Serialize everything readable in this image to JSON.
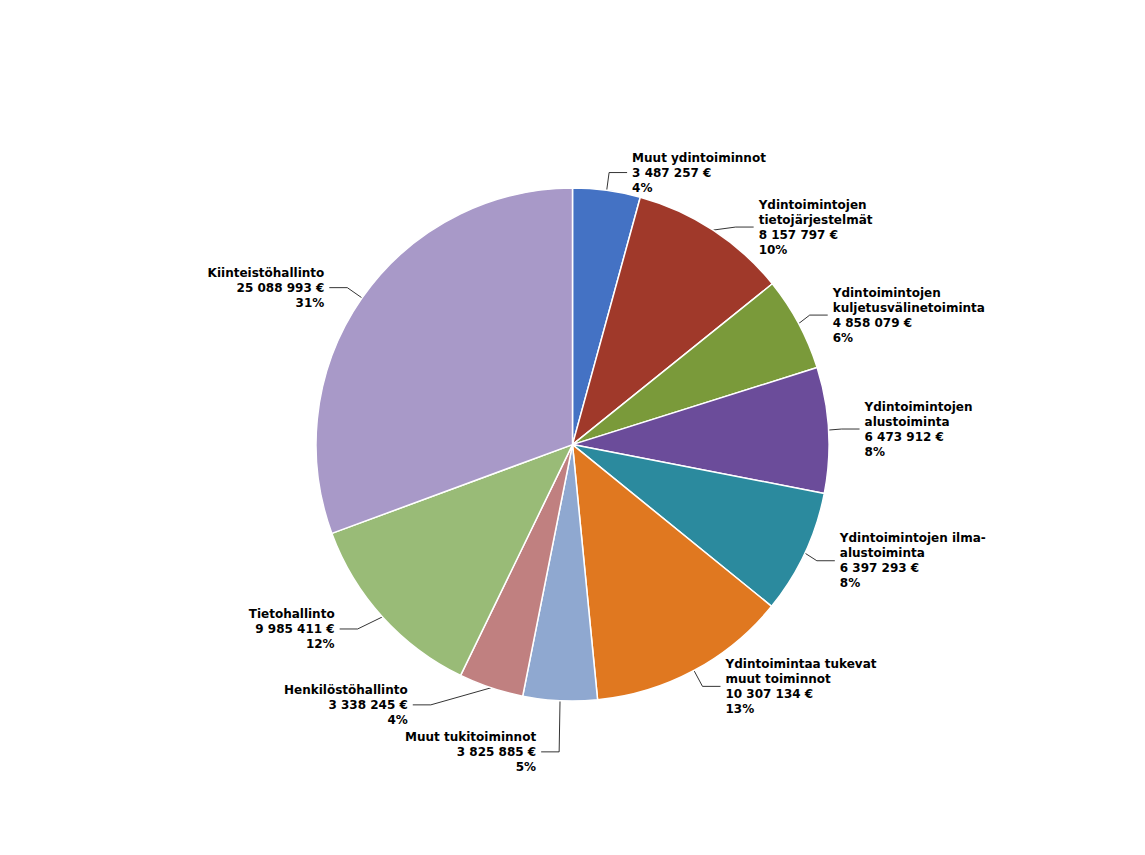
{
  "chart_data": {
    "type": "pie",
    "categories": [
      "Muut ydintoiminnot",
      "Ydintoimintojen\ntietojärjestelmät",
      "Ydintoimintojen\nkuljetusvälinetoiminta",
      "Ydintoimintojen\nalustoiminta",
      "Ydintoimintojen ilma-\nalustoiminta",
      "Ydintoimintaa tukevat\nmuut toiminnot",
      "Muut tukitoiminnot",
      "Henkilöstöhallinto",
      "Tietohallinto",
      "Kiinteistöhallinto"
    ],
    "values": [
      3487257,
      8157797,
      4858079,
      6473912,
      6397293,
      10307134,
      3825885,
      3338245,
      9985411,
      25088993
    ],
    "value_labels": [
      "3 487 257 €\n4%",
      "8 157 797 €\n10%",
      "4 858 079 €\n6%",
      "6 473 912 €\n8%",
      "6 397 293 €\n8%",
      "10 307 134 €\n13%",
      "3 825 885 €\n5%",
      "3 338 245 €\n4%",
      "9 985 411 €\n12%",
      "25 088 993 €\n31%"
    ],
    "colors": [
      "#4472c4",
      "#a0392a",
      "#7a9a3a",
      "#6b4c9a",
      "#2b8a9e",
      "#e07820",
      "#8fa8d0",
      "#c08080",
      "#99bb77",
      "#a899c8"
    ],
    "data_labels": true
  }
}
